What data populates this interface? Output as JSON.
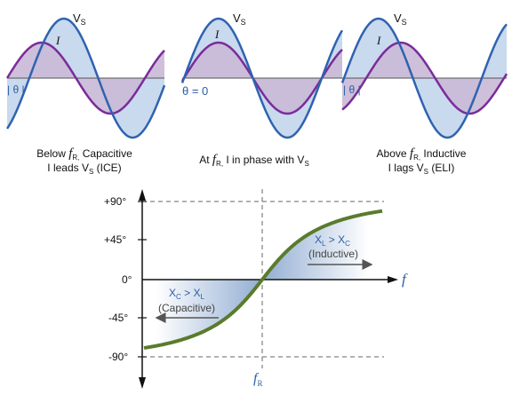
{
  "colors": {
    "voltage": "#2f63b0",
    "voltage_fill": "#c9d9ee",
    "current": "#7a2c9a",
    "current_fill": "#c9b9d6",
    "phase_curve": "#5a7b2c",
    "label_blue": "#2b5ea8",
    "axis": "#111111",
    "dashed": "#666666"
  },
  "panels": [
    {
      "vs_label": "V",
      "vs_sub": "S",
      "i_label": "I",
      "theta_label": "| θ |",
      "caption_line1_pre": "Below ",
      "caption_f": "f",
      "caption_f_sub": "R,",
      "caption_line1_post": " Capacitive",
      "caption_line2": "I leads V",
      "caption_line2_sub": "S",
      "caption_line2_post": " (ICE)"
    },
    {
      "vs_label": "V",
      "vs_sub": "S",
      "i_label": "I",
      "theta_label": "θ = 0",
      "caption_line1_pre": "At ",
      "caption_f": "f",
      "caption_f_sub": "R,",
      "caption_line1_post": " I in phase with V",
      "caption_line1_sub": "S"
    },
    {
      "vs_label": "V",
      "vs_sub": "S",
      "i_label": "I",
      "theta_label": "| θ |",
      "caption_line1_pre": "Above ",
      "caption_f": "f",
      "caption_f_sub": "R,",
      "caption_line1_post": " Inductive",
      "caption_line2": "I lags V",
      "caption_line2_sub": "S",
      "caption_line2_post": " (ELI)"
    }
  ],
  "phase_plot": {
    "y_ticks": [
      "+90°",
      "+45°",
      "0°",
      "-45°",
      "-90°"
    ],
    "x_axis_label": "f",
    "fr_label": "f",
    "fr_sub": "R",
    "inductive_line1": "X",
    "inductive_sub1": "L",
    "inductive_mid": " > X",
    "inductive_sub2": "C",
    "inductive_line2": "(Inductive)",
    "capacitive_line1": "X",
    "capacitive_sub1": "C",
    "capacitive_mid": " > X",
    "capacitive_sub2": "L",
    "capacitive_line2": "(Capacitive)"
  }
}
